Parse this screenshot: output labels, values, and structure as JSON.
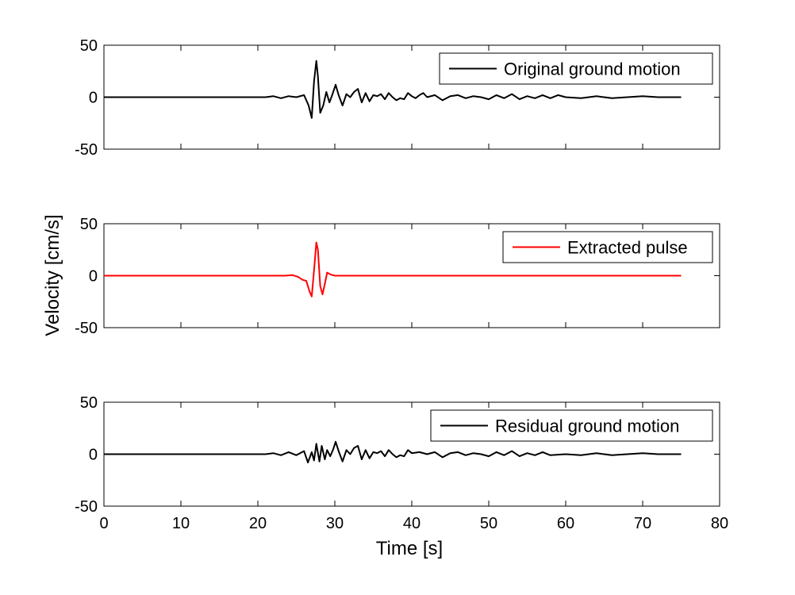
{
  "chart_data": {
    "type": "line",
    "layout": "three vertically stacked subplots sharing the time axis",
    "xlabel": "Time [s]",
    "ylabel": "Velocity [cm/s]",
    "xlim": [
      0,
      80
    ],
    "xticks": [
      "0",
      "10",
      "20",
      "30",
      "40",
      "50",
      "60",
      "70",
      "80"
    ],
    "ylim": [
      -50,
      50
    ],
    "yticks": [
      "-50",
      "0",
      "50"
    ],
    "grid": false,
    "panels": [
      {
        "legend": "Original ground motion",
        "legend_position": "top-right",
        "color": "#000000",
        "series": {
          "name": "Original ground motion",
          "x": [
            0,
            21,
            22,
            23,
            24,
            25,
            26,
            26.6,
            27.0,
            27.3,
            27.6,
            27.8,
            28.1,
            28.5,
            28.9,
            29.3,
            29.7,
            30.1,
            30.5,
            31.0,
            31.5,
            32.0,
            32.5,
            33.0,
            33.5,
            34.0,
            34.5,
            35.0,
            35.5,
            36.0,
            36.5,
            37.0,
            37.5,
            38.0,
            38.5,
            39.0,
            39.5,
            40.0,
            40.5,
            41.0,
            41.5,
            42.0,
            43.0,
            44.0,
            45.0,
            46.0,
            47.0,
            48.0,
            49.0,
            50.0,
            51.0,
            52.0,
            53.0,
            54.0,
            55.0,
            56.0,
            57.0,
            58.0,
            59.0,
            60.0,
            62.0,
            64.0,
            66.0,
            68.0,
            70.0,
            72.0,
            75.0
          ],
          "y": [
            0,
            0,
            1,
            -1,
            1,
            0,
            2,
            -8,
            -20,
            15,
            35,
            20,
            -15,
            -8,
            5,
            -5,
            3,
            12,
            2,
            -8,
            3,
            0,
            5,
            8,
            -5,
            4,
            -4,
            2,
            1,
            3,
            -2,
            4,
            0,
            -3,
            -1,
            -2,
            4,
            1,
            -1,
            2,
            4,
            0,
            2,
            -3,
            1,
            2,
            -1,
            1,
            0,
            -2,
            2,
            -1,
            3,
            -2,
            1,
            -1,
            2,
            -1,
            2,
            0,
            -1,
            1,
            -1,
            0,
            1,
            0,
            0
          ]
        }
      },
      {
        "legend": "Extracted pulse",
        "legend_position": "top-right",
        "color": "#ff0000",
        "series": {
          "name": "Extracted pulse",
          "x": [
            0,
            23.5,
            24.5,
            25.2,
            25.8,
            26.3,
            26.7,
            27.0,
            27.3,
            27.6,
            27.8,
            28.1,
            28.4,
            28.7,
            29.0,
            29.5,
            30.0,
            31,
            75
          ],
          "y": [
            0,
            0,
            0.5,
            -1,
            -4,
            -5,
            -15,
            -20,
            5,
            32,
            25,
            -10,
            -18,
            -8,
            3,
            1,
            0,
            0,
            0
          ]
        }
      },
      {
        "legend": "Residual ground motion",
        "legend_position": "top-right",
        "color": "#000000",
        "series": {
          "name": "Residual ground motion",
          "x": [
            0,
            21,
            22,
            23,
            24,
            25,
            26,
            26.5,
            27.0,
            27.3,
            27.6,
            28.0,
            28.3,
            28.7,
            29.0,
            29.4,
            29.8,
            30.1,
            30.5,
            31.0,
            31.5,
            32.0,
            32.5,
            33.0,
            33.5,
            34.0,
            34.5,
            35.0,
            35.5,
            36.0,
            36.5,
            37.0,
            37.5,
            38.0,
            38.5,
            39.0,
            39.5,
            40.0,
            41.0,
            42.0,
            43.0,
            44.0,
            45.0,
            46.0,
            47.0,
            48.0,
            49.0,
            50.0,
            51.0,
            52.0,
            53.0,
            54.0,
            55.0,
            56.0,
            57.0,
            58.0,
            60.0,
            62.0,
            64.0,
            66.0,
            68.0,
            70.0,
            72.0,
            75.0
          ],
          "y": [
            0,
            0,
            1,
            -1,
            2,
            -1,
            3,
            -8,
            2,
            -6,
            10,
            -7,
            8,
            -5,
            4,
            -2,
            5,
            12,
            3,
            -7,
            4,
            0,
            6,
            8,
            -5,
            4,
            -4,
            2,
            1,
            3,
            -2,
            4,
            0,
            -3,
            -1,
            -2,
            4,
            1,
            2,
            0,
            2,
            -3,
            1,
            2,
            -1,
            1,
            0,
            -2,
            2,
            -1,
            3,
            -2,
            1,
            -1,
            2,
            -1,
            0,
            -1,
            1,
            -1,
            0,
            1,
            0,
            0
          ]
        }
      }
    ]
  }
}
